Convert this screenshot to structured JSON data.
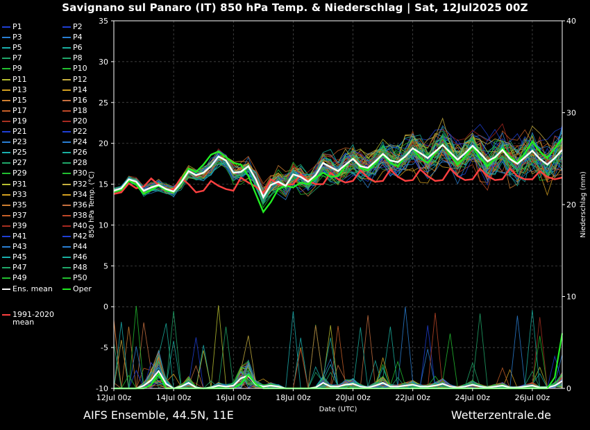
{
  "title": "Savignano sul Panaro  (IT)  850 hPa Temp. & Niederschlag | Sat, 12Jul2025 00Z",
  "footer": {
    "left": "AIFS Ensemble, 44.5N, 11E",
    "right": "Wetterzentrale.de"
  },
  "chart_data": {
    "type": "line",
    "xlabel": "Date (UTC)",
    "ylabel": "850 hPa Temp. (°C)",
    "y2label": "Niederschlag (mm)",
    "ylim": [
      -10,
      35
    ],
    "y2lim": [
      0,
      40
    ],
    "yticks": [
      "35",
      "30",
      "25",
      "20",
      "15",
      "10",
      "5",
      "0",
      "-5",
      "-10"
    ],
    "y2ticks": [
      "40",
      "30",
      "20",
      "10",
      "0"
    ],
    "xlim": [
      0,
      15
    ],
    "xticks": [
      {
        "x": 0,
        "label": "12Jul 00z"
      },
      {
        "x": 2,
        "label": "14Jul 00z"
      },
      {
        "x": 4,
        "label": "16Jul 00z"
      },
      {
        "x": 6,
        "label": "18Jul 00z"
      },
      {
        "x": 8,
        "label": "20Jul 00z"
      },
      {
        "x": 10,
        "label": "22Jul 00z"
      },
      {
        "x": 12,
        "label": "24Jul 00z"
      },
      {
        "x": 14,
        "label": "26Jul 00z"
      }
    ],
    "grid": true,
    "legend_placement": "left",
    "legend": [
      {
        "label": "P1",
        "color": "#1f3fd6"
      },
      {
        "label": "P2",
        "color": "#1f3fd6"
      },
      {
        "label": "P3",
        "color": "#2a7fd4"
      },
      {
        "label": "P4",
        "color": "#2a7fd4"
      },
      {
        "label": "P5",
        "color": "#1ab0b0"
      },
      {
        "label": "P6",
        "color": "#1ab0a0"
      },
      {
        "label": "P7",
        "color": "#20a86a"
      },
      {
        "label": "P8",
        "color": "#20a86a"
      },
      {
        "label": "P9",
        "color": "#22c030"
      },
      {
        "label": "P10",
        "color": "#22c030"
      },
      {
        "label": "P11",
        "color": "#b8c030"
      },
      {
        "label": "P12",
        "color": "#c8b040"
      },
      {
        "label": "P13",
        "color": "#d4a020"
      },
      {
        "label": "P14",
        "color": "#d4a020"
      },
      {
        "label": "P15",
        "color": "#d08030"
      },
      {
        "label": "P16",
        "color": "#c87040"
      },
      {
        "label": "P17",
        "color": "#c86028"
      },
      {
        "label": "P18",
        "color": "#c04828"
      },
      {
        "label": "P19",
        "color": "#a83020"
      },
      {
        "label": "P20",
        "color": "#a82820"
      },
      {
        "label": "P21",
        "color": "#1f3fd6"
      },
      {
        "label": "P22",
        "color": "#1f3fd6"
      },
      {
        "label": "P23",
        "color": "#2a7fd4"
      },
      {
        "label": "P24",
        "color": "#2a7fd4"
      },
      {
        "label": "P25",
        "color": "#1ab0b0"
      },
      {
        "label": "P26",
        "color": "#1ab0a0"
      },
      {
        "label": "P27",
        "color": "#20a86a"
      },
      {
        "label": "P28",
        "color": "#20a86a"
      },
      {
        "label": "P29",
        "color": "#22c030"
      },
      {
        "label": "P30",
        "color": "#22c030"
      },
      {
        "label": "P31",
        "color": "#b8c030"
      },
      {
        "label": "P32",
        "color": "#c8b040"
      },
      {
        "label": "P33",
        "color": "#d4a020"
      },
      {
        "label": "P34",
        "color": "#d4a020"
      },
      {
        "label": "P35",
        "color": "#d08030"
      },
      {
        "label": "P36",
        "color": "#c87040"
      },
      {
        "label": "P37",
        "color": "#c86028"
      },
      {
        "label": "P38",
        "color": "#c04828"
      },
      {
        "label": "P39",
        "color": "#a83020"
      },
      {
        "label": "P40",
        "color": "#a82820"
      },
      {
        "label": "P41",
        "color": "#1f3fd6"
      },
      {
        "label": "P42",
        "color": "#1f3fd6"
      },
      {
        "label": "P43",
        "color": "#2a7fd4"
      },
      {
        "label": "P44",
        "color": "#2a7fd4"
      },
      {
        "label": "P45",
        "color": "#1ab0b0"
      },
      {
        "label": "P46",
        "color": "#1ab0a0"
      },
      {
        "label": "P47",
        "color": "#20a86a"
      },
      {
        "label": "P48",
        "color": "#20a86a"
      },
      {
        "label": "P49",
        "color": "#22c030"
      },
      {
        "label": "P50",
        "color": "#22c030"
      },
      {
        "label": "Ens. mean",
        "color": "#ffffff"
      },
      {
        "label": "Oper",
        "color": "#22ee22"
      },
      {
        "label": "1991-2020\nmean",
        "color": "#ff4040"
      }
    ],
    "series": [
      {
        "name": "Ens. mean",
        "color": "#ffffff",
        "x": [
          0,
          0.25,
          0.5,
          0.75,
          1,
          1.25,
          1.5,
          1.75,
          2,
          2.25,
          2.5,
          2.75,
          3,
          3.25,
          3.5,
          3.75,
          4,
          4.25,
          4.5,
          4.75,
          5,
          5.25,
          5.5,
          5.75,
          6,
          6.25,
          6.5,
          6.75,
          7,
          7.25,
          7.5,
          7.75,
          8,
          8.25,
          8.5,
          8.75,
          9,
          9.25,
          9.5,
          9.75,
          10,
          10.25,
          10.5,
          10.75,
          11,
          11.25,
          11.5,
          11.75,
          12,
          12.25,
          12.5,
          12.75,
          13,
          13.25,
          13.5,
          13.75,
          14,
          14.25,
          14.5,
          14.75,
          15
        ],
        "values": [
          14.2,
          14.5,
          15.6,
          15.3,
          14.2,
          14.6,
          14.9,
          14.4,
          14.1,
          15.2,
          16.6,
          16.1,
          16.4,
          17.2,
          18.4,
          17.9,
          16.4,
          16.5,
          17.2,
          15.6,
          13.4,
          14.9,
          15.3,
          14.8,
          16.2,
          15.9,
          15.3,
          16.1,
          17.6,
          17.1,
          16.6,
          17.4,
          18.1,
          17.2,
          17.0,
          17.8,
          18.7,
          17.9,
          17.7,
          18.4,
          19.4,
          18.8,
          18.2,
          19.0,
          19.8,
          18.9,
          18.0,
          18.8,
          19.7,
          18.8,
          17.8,
          18.3,
          19.2,
          18.1,
          17.5,
          18.3,
          19.1,
          18.1,
          17.4,
          18.2,
          19.2
        ]
      },
      {
        "name": "Oper",
        "color": "#22ee22",
        "x": [
          0,
          0.25,
          0.5,
          0.75,
          1,
          1.25,
          1.5,
          1.75,
          2,
          2.25,
          2.5,
          2.75,
          3,
          3.25,
          3.5,
          3.75,
          4,
          4.25,
          4.5,
          4.75,
          5,
          5.25,
          5.5,
          5.75,
          6,
          6.25,
          6.5,
          6.75,
          7,
          7.25,
          7.5,
          7.75,
          8,
          8.25,
          8.5,
          8.75,
          9,
          9.25,
          9.5,
          9.75,
          10,
          10.25,
          10.5,
          10.75,
          11,
          11.25,
          11.5,
          11.75,
          12,
          12.25,
          12.5,
          12.75,
          13,
          13.25,
          13.5,
          13.75,
          14,
          14.25,
          14.5,
          14.75,
          15
        ],
        "values": [
          14.1,
          14.3,
          15.4,
          15.0,
          13.8,
          14.3,
          14.8,
          14.2,
          14.0,
          15.4,
          16.9,
          16.5,
          17.4,
          18.6,
          19.0,
          18.3,
          17.6,
          17.4,
          16.0,
          13.8,
          11.6,
          12.8,
          14.4,
          14.8,
          14.6,
          15.2,
          15.0,
          15.8,
          16.4,
          15.9,
          16.0,
          17.2,
          18.2,
          17.0,
          16.7,
          17.6,
          18.6,
          17.6,
          17.2,
          18.4,
          19.4,
          18.2,
          17.6,
          18.8,
          19.9,
          18.6,
          17.4,
          18.4,
          19.6,
          18.2,
          17.2,
          18.1,
          19.4,
          18.4,
          17.6,
          18.8,
          20.2,
          19.0,
          18.2,
          19.4,
          20.6
        ]
      },
      {
        "name": "1991-2020 mean",
        "color": "#ff4040",
        "x": [
          0,
          0.25,
          0.5,
          0.75,
          1,
          1.25,
          1.5,
          1.75,
          2,
          2.25,
          2.5,
          2.75,
          3,
          3.25,
          3.5,
          3.75,
          4,
          4.25,
          4.5,
          4.75,
          5,
          5.25,
          5.5,
          5.75,
          6,
          6.25,
          6.5,
          6.75,
          7,
          7.25,
          7.5,
          7.75,
          8,
          8.25,
          8.5,
          8.75,
          9,
          9.25,
          9.5,
          9.75,
          10,
          10.25,
          10.5,
          10.75,
          11,
          11.25,
          11.5,
          11.75,
          12,
          12.25,
          12.5,
          12.75,
          13,
          13.25,
          13.5,
          13.75,
          14,
          14.25,
          14.5,
          14.75,
          15
        ],
        "values": [
          13.8,
          14.0,
          15.1,
          14.5,
          14.7,
          15.7,
          14.9,
          14.3,
          14.4,
          15.8,
          15.0,
          14.0,
          14.2,
          15.4,
          14.8,
          14.4,
          14.2,
          15.8,
          15.2,
          14.7,
          13.9,
          15.6,
          15.0,
          14.9,
          15.0,
          16.2,
          15.4,
          15.0,
          15.0,
          16.4,
          15.6,
          15.2,
          15.4,
          16.7,
          15.8,
          15.3,
          15.4,
          16.8,
          15.9,
          15.4,
          15.5,
          16.8,
          16.0,
          15.4,
          15.5,
          16.9,
          16.0,
          15.5,
          15.6,
          16.9,
          16.0,
          15.5,
          15.6,
          16.9,
          16.0,
          15.6,
          15.6,
          16.6,
          15.9,
          15.6,
          15.8
        ]
      }
    ],
    "ensemble_count": 50,
    "precipitation": {
      "x": [
        0,
        0.25,
        0.5,
        0.75,
        1,
        1.25,
        1.5,
        1.75,
        2,
        2.25,
        2.5,
        2.75,
        3,
        3.25,
        3.5,
        3.75,
        4,
        4.25,
        4.5,
        4.75,
        5,
        5.25,
        5.5,
        5.75,
        6,
        6.25,
        6.5,
        6.75,
        7,
        7.25,
        7.5,
        7.75,
        8,
        8.25,
        8.5,
        8.75,
        9,
        9.25,
        9.5,
        9.75,
        10,
        10.25,
        10.5,
        10.75,
        11,
        11.25,
        11.5,
        11.75,
        12,
        12.25,
        12.5,
        12.75,
        13,
        13.25,
        13.5,
        13.75,
        14,
        14.25,
        14.5,
        14.75,
        15
      ],
      "ens_mean": [
        0,
        0,
        0,
        0,
        0.3,
        0.9,
        1.9,
        0.5,
        0,
        0.2,
        0.6,
        0.1,
        0,
        0.1,
        0.3,
        0.2,
        0.3,
        1.1,
        1.4,
        0.4,
        0.2,
        0.3,
        0.2,
        0,
        0,
        0,
        0,
        0.1,
        0.6,
        0.2,
        0.2,
        0.4,
        0.5,
        0.2,
        0.1,
        0.3,
        0.6,
        0.2,
        0.2,
        0.3,
        0.4,
        0.2,
        0.2,
        0.3,
        0.5,
        0.2,
        0.1,
        0.2,
        0.4,
        0.2,
        0.1,
        0.2,
        0.3,
        0.1,
        0.1,
        0.2,
        0.3,
        0.1,
        0.1,
        0.3,
        0.8
      ],
      "oper": [
        0,
        0,
        0,
        0,
        0,
        0.4,
        1.6,
        0,
        0,
        0,
        0,
        0,
        0,
        0,
        0,
        0,
        0,
        0.5,
        1.5,
        0.5,
        0,
        0,
        0,
        0,
        0,
        0,
        0,
        0,
        0,
        0,
        0,
        0,
        0,
        0,
        0,
        0,
        0,
        0,
        0,
        0,
        0,
        0,
        0,
        0,
        0,
        0,
        0,
        0,
        0,
        0,
        0,
        0,
        0,
        0,
        0,
        0,
        0,
        0,
        0,
        1.2,
        6.0
      ]
    }
  }
}
